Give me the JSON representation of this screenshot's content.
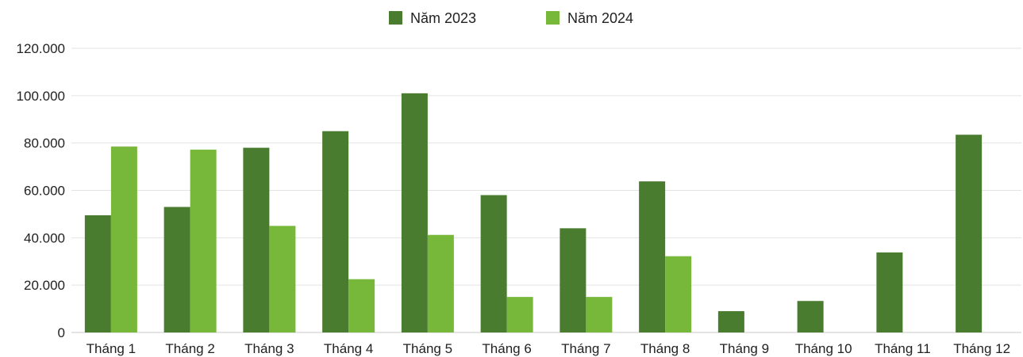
{
  "chart_data": {
    "type": "bar",
    "title": "",
    "xlabel": "",
    "ylabel": "",
    "categories": [
      "Tháng 1",
      "Tháng 2",
      "Tháng 3",
      "Tháng 4",
      "Tháng 5",
      "Tháng 6",
      "Tháng 7",
      "Tháng 8",
      "Tháng 9",
      "Tháng 10",
      "Tháng 11",
      "Tháng 12"
    ],
    "series": [
      {
        "name": "Năm 2023",
        "color": "#4a7c2f",
        "values": [
          49500,
          53000,
          78000,
          85000,
          101000,
          58000,
          44000,
          63800,
          9000,
          13300,
          33800,
          83500
        ]
      },
      {
        "name": "Năm 2024",
        "color": "#77b83a",
        "values": [
          78500,
          77200,
          45000,
          22500,
          41200,
          15000,
          15000,
          32200,
          null,
          null,
          null,
          null
        ]
      }
    ],
    "ylim": [
      0,
      120000
    ],
    "y_ticks": [
      0,
      20000,
      40000,
      60000,
      80000,
      100000,
      120000
    ],
    "y_tick_labels": [
      "0",
      "20.000",
      "40.000",
      "60.000",
      "80.000",
      "100.000",
      "120.000"
    ],
    "grid": true,
    "legend_position": "top-center"
  }
}
